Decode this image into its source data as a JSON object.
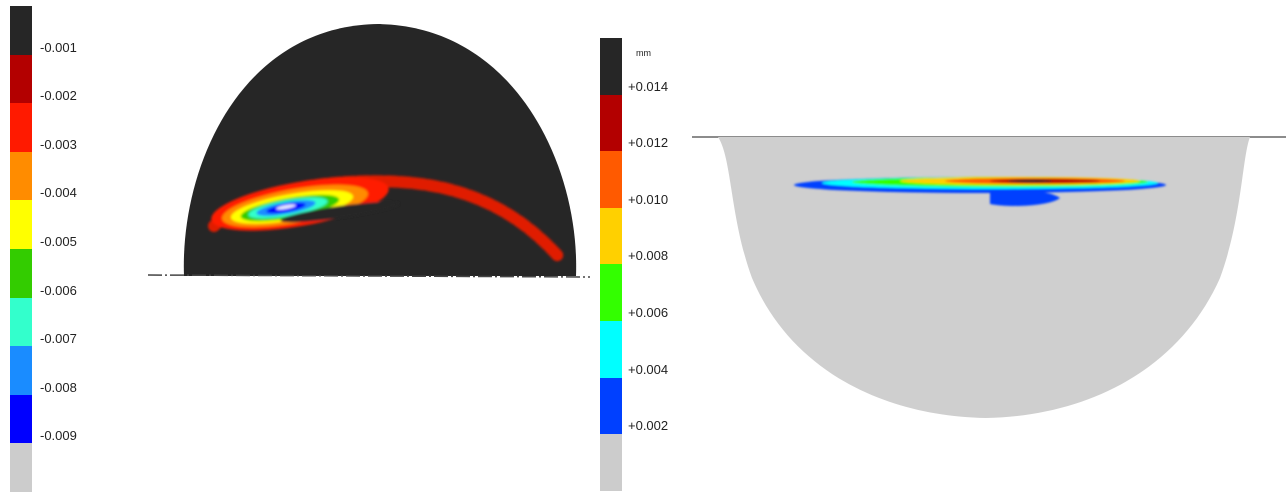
{
  "left_legend": {
    "colors": [
      "#262626",
      "#b30000",
      "#ff1a00",
      "#ff8c00",
      "#ffff00",
      "#33cc00",
      "#33ffcc",
      "#1a8cff",
      "#0000ff",
      "#cccccc"
    ],
    "labels": [
      "-0.001",
      "-0.002",
      "-0.003",
      "-0.004",
      "-0.005",
      "-0.006",
      "-0.007",
      "-0.008",
      "-0.009"
    ]
  },
  "right_legend": {
    "unit": "mm",
    "colors": [
      "#262626",
      "#b30000",
      "#ff5a00",
      "#ffd000",
      "#33ff00",
      "#00ffff",
      "#0040ff",
      "#cccccc"
    ],
    "labels": [
      "+0.014",
      "+0.012",
      "+0.010",
      "+0.008",
      "+0.006",
      "+0.004",
      "+0.002"
    ]
  },
  "colors": {
    "dome": "#262626",
    "bowl": "#cfcfcf",
    "background": "#ffffff"
  }
}
